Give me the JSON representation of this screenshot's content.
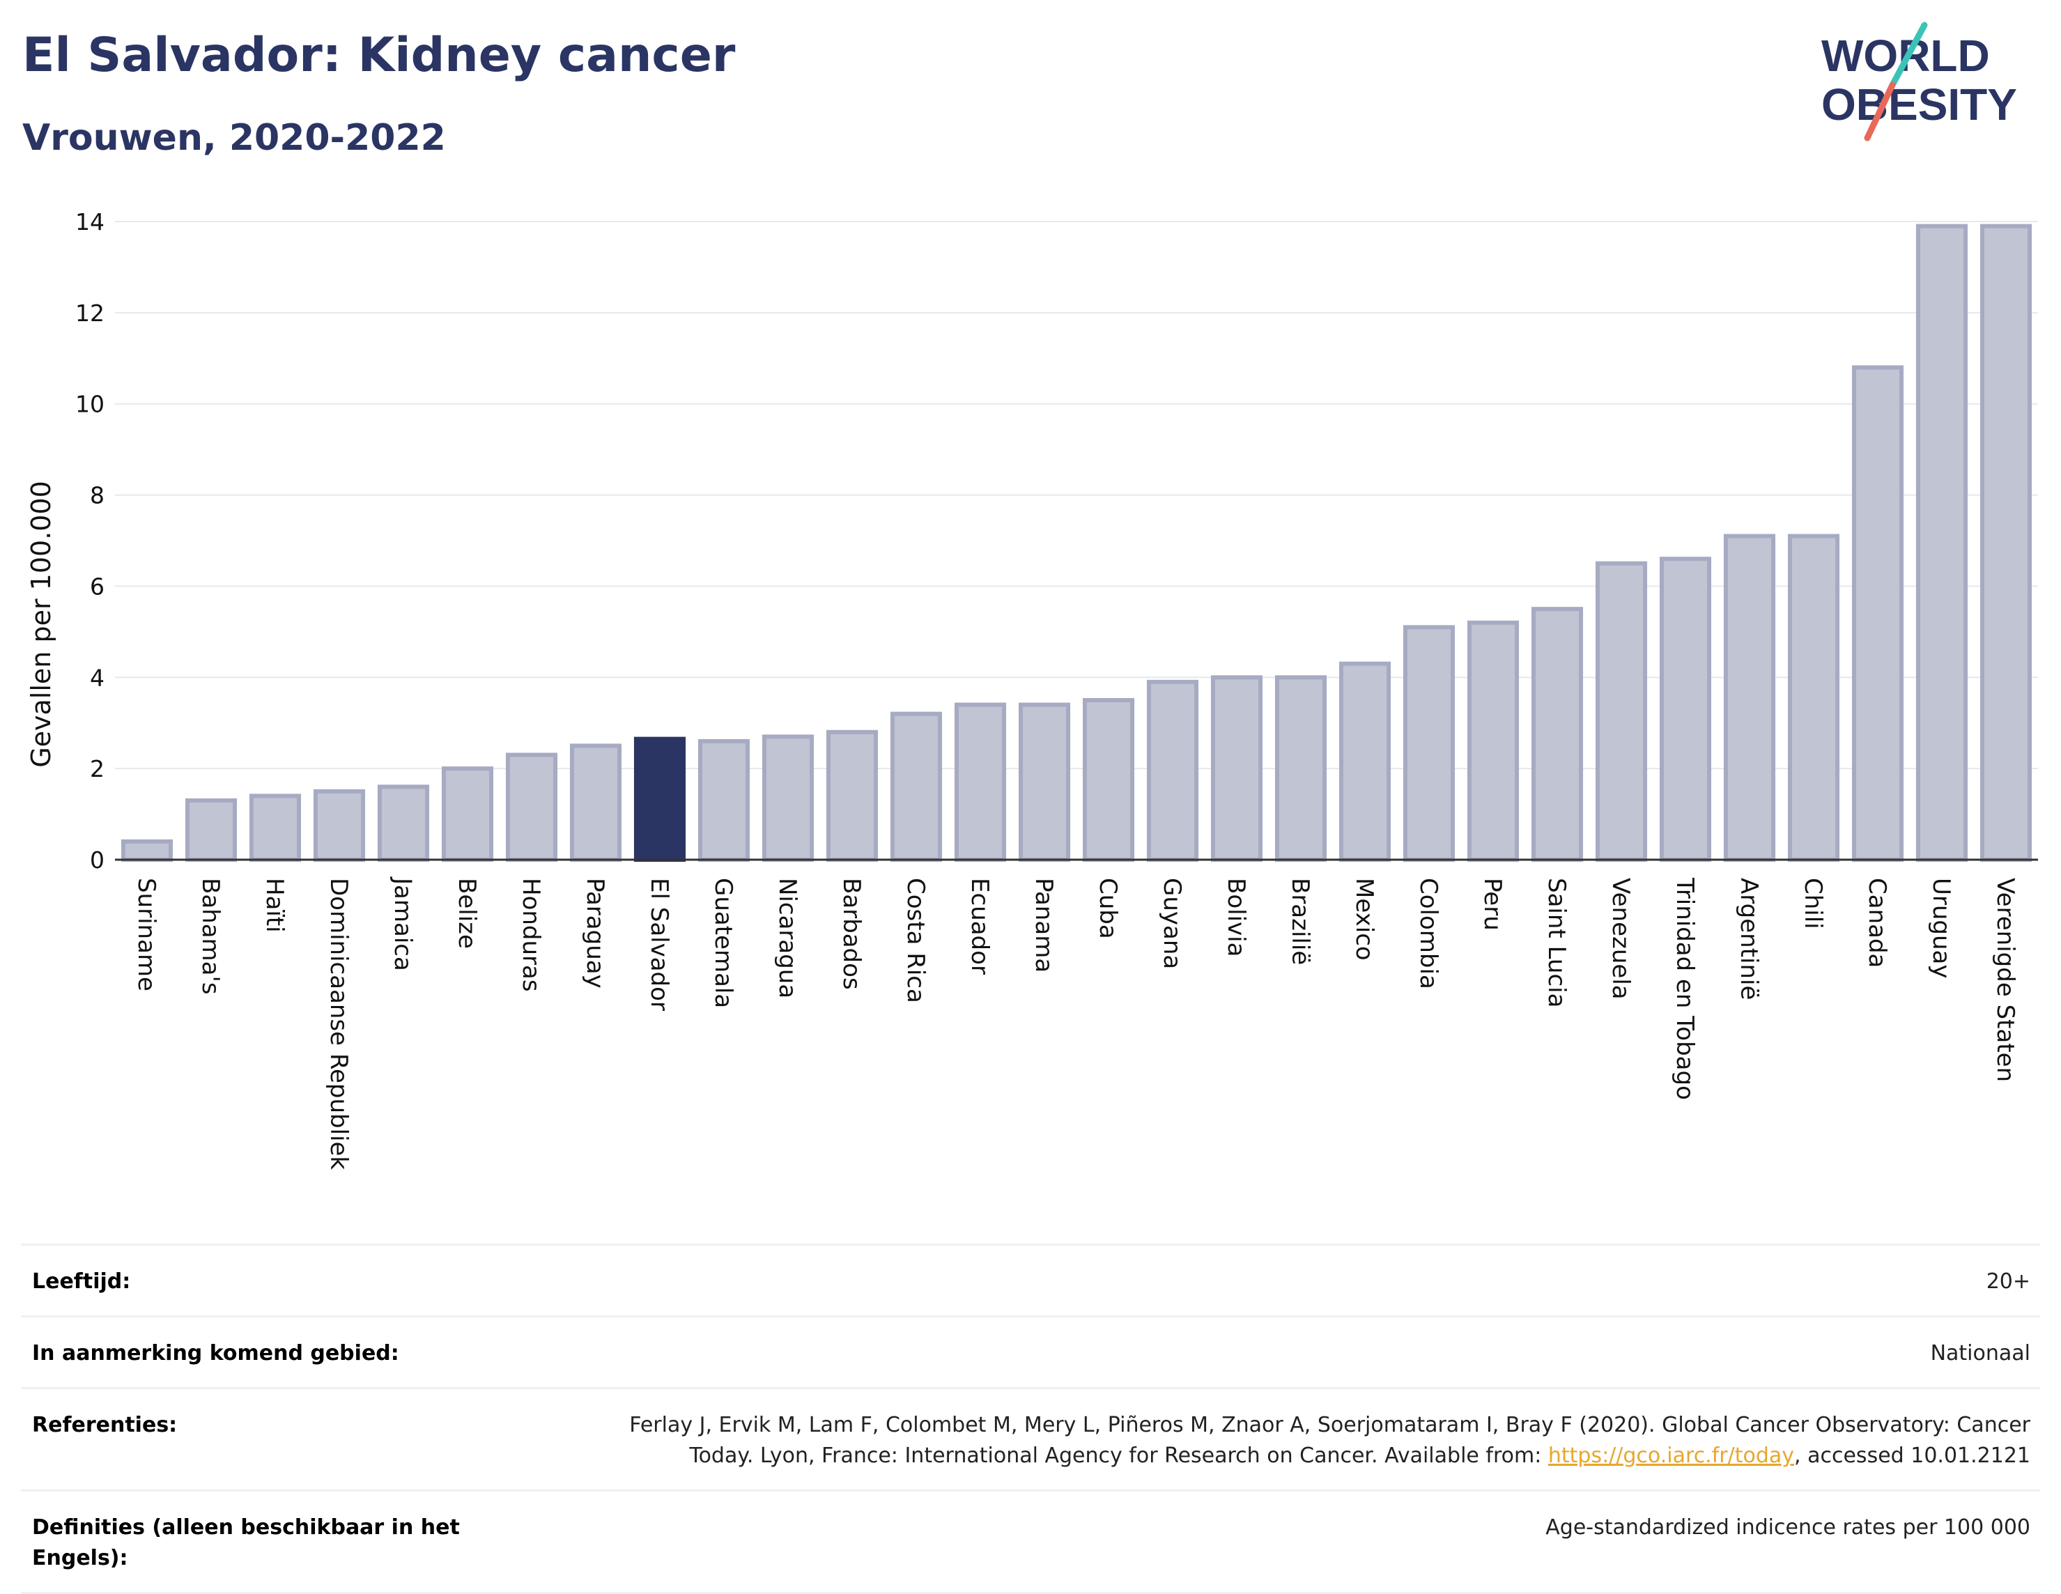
{
  "header": {
    "title": "El Salvador: Kidney cancer",
    "subtitle": "Vrouwen, 2020-2022",
    "logo_line1": "WORLD",
    "logo_line2": "OBESITY"
  },
  "colors": {
    "bar": "#c0c4d3",
    "bar_stroke": "#a6abc2",
    "highlight": "#2b3563",
    "grid": "#e6e8ee",
    "title": "#2b3563",
    "logo_slash_teal": "#3cc3b8",
    "logo_slash_red": "#e8695a"
  },
  "chart_data": {
    "type": "bar",
    "ylabel": "Gevallen per 100.000",
    "ylim": [
      0,
      14
    ],
    "yticks": [
      0,
      2,
      4,
      6,
      8,
      10,
      12,
      14
    ],
    "grid": true,
    "highlight": "El Salvador",
    "categories": [
      "Suriname",
      "Bahama's",
      "Haïti",
      "Dominicaanse Republiek",
      "Jamaica",
      "Belize",
      "Honduras",
      "Paraguay",
      "El Salvador",
      "Guatemala",
      "Nicaragua",
      "Barbados",
      "Costa Rica",
      "Ecuador",
      "Panama",
      "Cuba",
      "Guyana",
      "Bolivia",
      "Brazilië",
      "Mexico",
      "Colombia",
      "Peru",
      "Saint Lucia",
      "Venezuela",
      "Trinidad en Tobago",
      "Argentinië",
      "Chili",
      "Canada",
      "Uruguay",
      "Verenigde Staten"
    ],
    "values": [
      0.4,
      1.3,
      1.4,
      1.5,
      1.6,
      2.0,
      2.3,
      2.5,
      2.65,
      2.6,
      2.7,
      2.8,
      3.2,
      3.4,
      3.4,
      3.5,
      3.9,
      4.0,
      4.0,
      4.3,
      5.1,
      5.2,
      5.5,
      6.5,
      6.6,
      7.1,
      7.1,
      10.8,
      13.9,
      13.9
    ]
  },
  "info": {
    "age_label": "Leeftijd:",
    "age_value": "20+",
    "area_label": "In aanmerking komend gebied:",
    "area_value": "Nationaal",
    "ref_label": "Referenties:",
    "ref_text_1": "Ferlay J, Ervik M, Lam F, Colombet M, Mery L, Piñeros M, Znaor A, Soerjomataram I, Bray F (2020). Global Cancer Observatory: Cancer",
    "ref_text_2": "Today. Lyon, France: International Agency for Research on Cancer. Available from: ",
    "ref_link": "https://gco.iarc.fr/today",
    "ref_text_3": ", accessed 10.01.2121",
    "def_label": "Definities (alleen beschikbaar in het Engels):",
    "def_value": "Age-standardized indicence rates per 100 000"
  }
}
